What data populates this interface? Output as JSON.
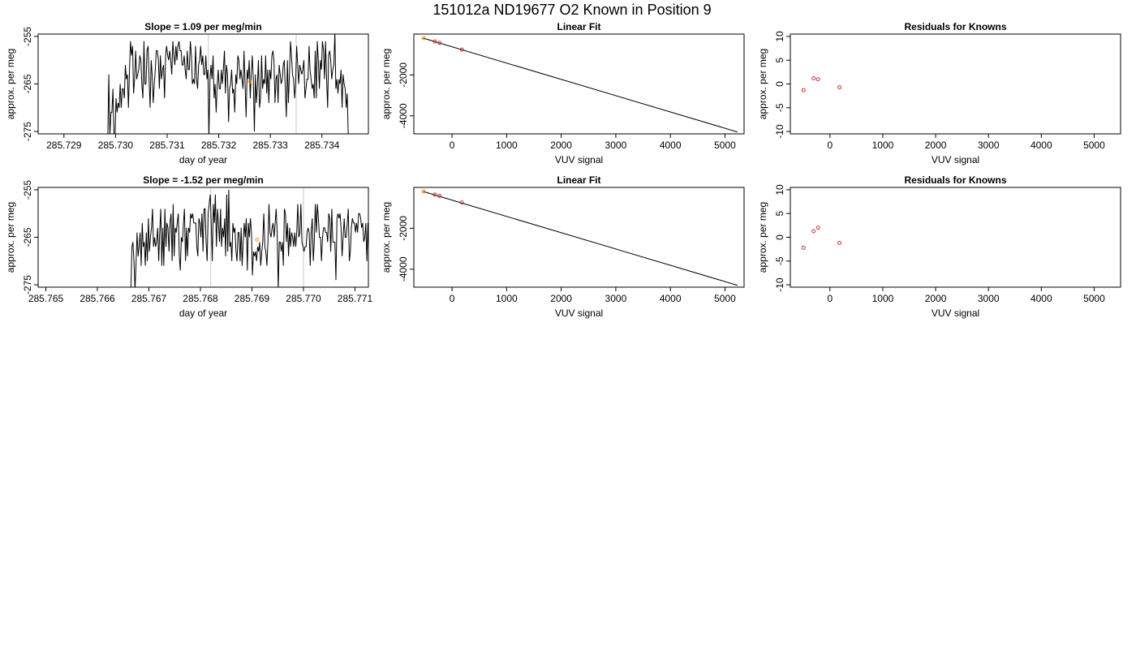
{
  "suptitle": "151012a     ND19677   O2 Known in Position  9",
  "chart_data": [
    {
      "type": "line",
      "panel": "timeseries-1",
      "title": "Slope =  1.09  per meg/min",
      "xlabel": "day of year",
      "ylabel": "approx. per meg",
      "xlim": [
        285.7285,
        285.7349
      ],
      "ylim": [
        -275.5,
        -254.5
      ],
      "xticks": [
        285.729,
        285.73,
        285.731,
        285.732,
        285.733,
        285.734
      ],
      "xticklabels": [
        "285.729",
        "285.730",
        "285.731",
        "285.732",
        "285.733",
        "285.734"
      ],
      "yticks": [
        -275,
        -265,
        -255
      ],
      "yticklabels": [
        "-275",
        "-265",
        "-255"
      ],
      "vlines": [
        285.7318,
        285.7335
      ],
      "marker": {
        "x": 285.7326,
        "y": -264.5,
        "color": "#ff8c00"
      },
      "series": [
        {
          "x_start": 285.72985,
          "x_step": 2e-05,
          "line_color": "#000000",
          "values": [
            -276,
            -263,
            -276,
            -271,
            -271,
            -266,
            -276,
            -276,
            -268,
            -271,
            -269,
            -270,
            -265,
            -270,
            -266,
            -266,
            -268,
            -261,
            -264,
            -263,
            -270,
            -262,
            -256,
            -259,
            -257,
            -267,
            -264,
            -258,
            -264,
            -263,
            -262,
            -259,
            -260,
            -265,
            -268,
            -256,
            -265,
            -265,
            -258,
            -257,
            -264,
            -270,
            -260,
            -263,
            -269,
            -265,
            -262,
            -258,
            -258,
            -260,
            -266,
            -259,
            -264,
            -262,
            -261,
            -268,
            -259,
            -257,
            -259,
            -260,
            -258,
            -260,
            -263,
            -256,
            -259,
            -261,
            -257,
            -260,
            -257,
            -256,
            -258,
            -258,
            -261,
            -261,
            -259,
            -262,
            -264,
            -258,
            -262,
            -262,
            -256,
            -259,
            -265,
            -264,
            -265,
            -257,
            -264,
            -266,
            -261,
            -260,
            -257,
            -261,
            -259,
            -263,
            -263,
            -259,
            -264,
            -262,
            -276,
            -264,
            -261,
            -264,
            -259,
            -268,
            -265,
            -271,
            -265,
            -262,
            -266,
            -266,
            -262,
            -265,
            -262,
            -258,
            -267,
            -261,
            -263,
            -273,
            -266,
            -265,
            -262,
            -267,
            -266,
            -271,
            -263,
            -265,
            -259,
            -260,
            -264,
            -262,
            -264,
            -266,
            -258,
            -265,
            -272,
            -262,
            -264,
            -260,
            -268,
            -263,
            -259,
            -264,
            -275,
            -263,
            -269,
            -265,
            -260,
            -270,
            -268,
            -259,
            -266,
            -264,
            -265,
            -259,
            -267,
            -262,
            -269,
            -262,
            -264,
            -259,
            -258,
            -260,
            -269,
            -264,
            -263,
            -269,
            -261,
            -263,
            -265,
            -264,
            -261,
            -260,
            -266,
            -272,
            -260,
            -269,
            -263,
            -256,
            -259,
            -263,
            -264,
            -268,
            -265,
            -257,
            -261,
            -265,
            -261,
            -262,
            -263,
            -262,
            -260,
            -268,
            -266,
            -264,
            -264,
            -257,
            -262,
            -264,
            -266,
            -265,
            -268,
            -258,
            -268,
            -256,
            -260,
            -266,
            -260,
            -262,
            -256,
            -258,
            -264,
            -256,
            -264,
            -270,
            -259,
            -258,
            -260,
            -264,
            -262,
            -261,
            -254,
            -266,
            -264,
            -267,
            -264,
            -265,
            -262,
            -270,
            -263,
            -265,
            -266,
            -270,
            -267,
            -276
          ]
        }
      ]
    },
    {
      "type": "scatter",
      "panel": "fit-1",
      "title": "Linear Fit",
      "xlabel": "VUV signal",
      "ylabel": "approx. per meg",
      "xlim": [
        -700,
        5350
      ],
      "ylim": [
        -4880,
        0
      ],
      "xticks": [
        0,
        1000,
        2000,
        3000,
        4000,
        5000
      ],
      "xticklabels": [
        "0",
        "1000",
        "2000",
        "3000",
        "4000",
        "5000"
      ],
      "yticks": [
        -4000,
        -2000
      ],
      "yticklabels": [
        "-4000",
        "-2000"
      ],
      "fit_line": {
        "x": [
          -530,
          5230
        ],
        "y": [
          -200,
          -4790
        ]
      },
      "points": [
        {
          "x": -520,
          "y": -200,
          "color": "#ff8c00"
        },
        {
          "x": -315,
          "y": -360,
          "color": "#cc3333"
        },
        {
          "x": -230,
          "y": -430,
          "color": "#cc3333"
        },
        {
          "x": 180,
          "y": -760,
          "color": "#cc3333"
        }
      ]
    },
    {
      "type": "scatter",
      "panel": "resid-1",
      "title": "Residuals for Knowns",
      "xlabel": "VUV signal",
      "ylabel": "approx. per meg",
      "xlim": [
        -750,
        5500
      ],
      "ylim": [
        -10.5,
        10.5
      ],
      "xticks": [
        0,
        1000,
        2000,
        3000,
        4000,
        5000
      ],
      "xticklabels": [
        "0",
        "1000",
        "2000",
        "3000",
        "4000",
        "5000"
      ],
      "yticks": [
        -10,
        -5,
        0,
        5,
        10
      ],
      "yticklabels": [
        "-10",
        "-5",
        "0",
        "5",
        "10"
      ],
      "points": [
        {
          "x": -500,
          "y": -1.3,
          "color": "#cc3333"
        },
        {
          "x": -310,
          "y": 1.2,
          "color": "#cc3333"
        },
        {
          "x": -225,
          "y": 1.0,
          "color": "#cc3333"
        },
        {
          "x": 180,
          "y": -0.7,
          "color": "#cc3333"
        }
      ]
    },
    {
      "type": "line",
      "panel": "timeseries-2",
      "title": "Slope =  -1.52  per meg/min",
      "xlabel": "day of year",
      "ylabel": "approx. per meg",
      "xlim": [
        285.76485,
        285.77126
      ],
      "ylim": [
        -275.5,
        -254.5
      ],
      "xticks": [
        285.765,
        285.766,
        285.767,
        285.768,
        285.769,
        285.77,
        285.771
      ],
      "xticklabels": [
        "285.765",
        "285.766",
        "285.767",
        "285.768",
        "285.769",
        "285.770",
        "285.771"
      ],
      "yticks": [
        -275,
        -265,
        -255
      ],
      "yticklabels": [
        "-275",
        "-265",
        "-255"
      ],
      "vlines": [
        285.7682,
        285.77
      ],
      "marker": {
        "x": 285.7691,
        "y": -265.5,
        "color": "#ff8c00"
      },
      "series": [
        {
          "x_start": 285.76665,
          "x_step": 2e-05,
          "line_color": "#000000",
          "values": [
            -276,
            -267,
            -266,
            -270,
            -276,
            -271,
            -264,
            -269,
            -267,
            -264,
            -271,
            -262,
            -267,
            -266,
            -271,
            -264,
            -270,
            -261,
            -268,
            -265,
            -263,
            -259,
            -267,
            -265,
            -267,
            -266,
            -263,
            -270,
            -264,
            -259,
            -271,
            -263,
            -271,
            -259,
            -267,
            -262,
            -263,
            -268,
            -262,
            -260,
            -270,
            -258,
            -269,
            -263,
            -264,
            -262,
            -260,
            -269,
            -272,
            -265,
            -266,
            -262,
            -259,
            -270,
            -263,
            -269,
            -263,
            -264,
            -260,
            -261,
            -260,
            -262,
            -262,
            -262,
            -267,
            -269,
            -261,
            -262,
            -265,
            -260,
            -268,
            -259,
            -259,
            -266,
            -270,
            -260,
            -258,
            -256,
            -262,
            -270,
            -258,
            -262,
            -256,
            -267,
            -259,
            -262,
            -266,
            -259,
            -267,
            -263,
            -265,
            -261,
            -269,
            -256,
            -268,
            -255,
            -267,
            -266,
            -270,
            -262,
            -264,
            -263,
            -268,
            -270,
            -264,
            -264,
            -270,
            -263,
            -271,
            -266,
            -262,
            -265,
            -261,
            -272,
            -262,
            -265,
            -261,
            -264,
            -273,
            -268,
            -269,
            -268,
            -270,
            -267,
            -268,
            -266,
            -271,
            -268,
            -266,
            -260,
            -267,
            -268,
            -271,
            -266,
            -258,
            -264,
            -265,
            -263,
            -262,
            -265,
            -262,
            -259,
            -264,
            -276,
            -266,
            -266,
            -268,
            -266,
            -271,
            -259,
            -260,
            -266,
            -262,
            -269,
            -263,
            -267,
            -264,
            -265,
            -267,
            -264,
            -267,
            -264,
            -258,
            -265,
            -264,
            -258,
            -266,
            -267,
            -268,
            -267,
            -267,
            -264,
            -263,
            -264,
            -271,
            -264,
            -261,
            -270,
            -266,
            -258,
            -264,
            -258,
            -261,
            -265,
            -265,
            -270,
            -265,
            -263,
            -263,
            -264,
            -264,
            -266,
            -260,
            -261,
            -268,
            -259,
            -266,
            -266,
            -266,
            -274,
            -261,
            -260,
            -261,
            -260,
            -263,
            -269,
            -265,
            -261,
            -265,
            -265,
            -262,
            -259,
            -270,
            -268,
            -263,
            -261,
            -262,
            -262,
            -264,
            -262,
            -264,
            -260,
            -260,
            -261,
            -263,
            -262,
            -266,
            -265,
            -262,
            -270,
            -262,
            -273,
            -262,
            -269,
            -267,
            -263,
            -264,
            -268,
            -270,
            -265,
            -262,
            -260,
            -262,
            -264,
            -261,
            -262,
            -258,
            -257,
            -264,
            -264,
            -262,
            -271,
            -264,
            -268,
            -267,
            -275
          ]
        }
      ]
    },
    {
      "type": "scatter",
      "panel": "fit-2",
      "title": "Linear Fit",
      "xlabel": "VUV signal",
      "ylabel": "approx. per meg",
      "xlim": [
        -700,
        5350
      ],
      "ylim": [
        -4880,
        0
      ],
      "xticks": [
        0,
        1000,
        2000,
        3000,
        4000,
        5000
      ],
      "xticklabels": [
        "0",
        "1000",
        "2000",
        "3000",
        "4000",
        "5000"
      ],
      "yticks": [
        -4000,
        -2000
      ],
      "yticklabels": [
        "-4000",
        "-2000"
      ],
      "fit_line": {
        "x": [
          -530,
          5230
        ],
        "y": [
          -200,
          -4790
        ]
      },
      "points": [
        {
          "x": -520,
          "y": -200,
          "color": "#ff8c00"
        },
        {
          "x": -315,
          "y": -350,
          "color": "#cc3333"
        },
        {
          "x": -230,
          "y": -410,
          "color": "#cc3333"
        },
        {
          "x": 180,
          "y": -740,
          "color": "#cc3333"
        }
      ]
    },
    {
      "type": "scatter",
      "panel": "resid-2",
      "title": "Residuals for Knowns",
      "xlabel": "VUV signal",
      "ylabel": "approx. per meg",
      "xlim": [
        -750,
        5500
      ],
      "ylim": [
        -10.5,
        10.5
      ],
      "xticks": [
        0,
        1000,
        2000,
        3000,
        4000,
        5000
      ],
      "xticklabels": [
        "0",
        "1000",
        "2000",
        "3000",
        "4000",
        "5000"
      ],
      "yticks": [
        -10,
        -5,
        0,
        5,
        10
      ],
      "yticklabels": [
        "-10",
        "-5",
        "0",
        "5",
        "10"
      ],
      "points": [
        {
          "x": -500,
          "y": -2.2,
          "color": "#cc3333"
        },
        {
          "x": -310,
          "y": 1.3,
          "color": "#cc3333"
        },
        {
          "x": -225,
          "y": 2.0,
          "color": "#cc3333"
        },
        {
          "x": 180,
          "y": -1.2,
          "color": "#cc3333"
        }
      ]
    }
  ]
}
